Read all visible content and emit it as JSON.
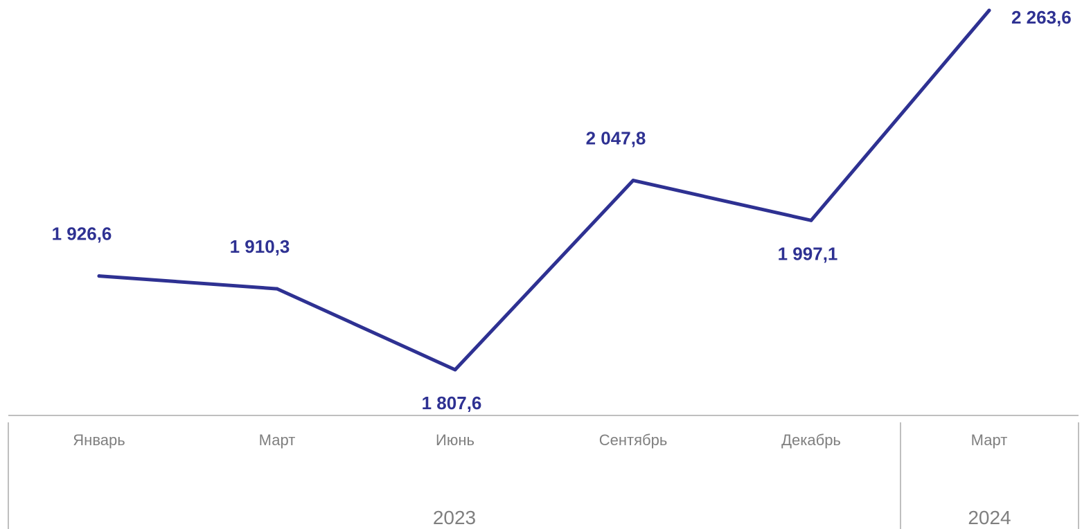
{
  "chart_data": {
    "type": "line",
    "categories": [
      "Январь",
      "Март",
      "Июнь",
      "Сентябрь",
      "Декабрь",
      "Март"
    ],
    "groups": [
      {
        "label": "2023",
        "count": 5
      },
      {
        "label": "2024",
        "count": 1
      }
    ],
    "series": [
      {
        "values": [
          1926.6,
          1910.3,
          1807.6,
          2047.8,
          1997.1,
          2263.6
        ],
        "labels": [
          "1 926,6",
          "1 910,3",
          "1 807,6",
          "2 047,8",
          "1 997,1",
          "2 263,6"
        ],
        "label_positions": [
          "above",
          "above",
          "below",
          "above",
          "below",
          "right"
        ]
      }
    ],
    "ylim": [
      1750,
      2300
    ],
    "grid": false,
    "legend": "none"
  },
  "colors": {
    "series": "#2E3192",
    "axis": "#BFBFBF",
    "tick_text": "#7F7F7F",
    "year_text": "#7F7F7F"
  }
}
